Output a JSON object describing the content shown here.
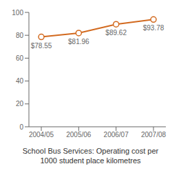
{
  "chart_data": {
    "type": "line",
    "title": "School Bus Services: Operating cost per\n1000 student place kilometres",
    "categories": [
      "2004/05",
      "2005/06",
      "2006/07",
      "2007/08"
    ],
    "values": [
      78.55,
      81.96,
      89.62,
      93.78
    ],
    "value_labels": [
      "$78.55",
      "$81.96",
      "$89.62",
      "$93.78"
    ],
    "data_labels": true,
    "color": "#d2691e",
    "marker": "circle",
    "ylim": [
      0,
      100
    ],
    "yticks": [
      0,
      20,
      40,
      60,
      80,
      100
    ],
    "grid": false
  }
}
